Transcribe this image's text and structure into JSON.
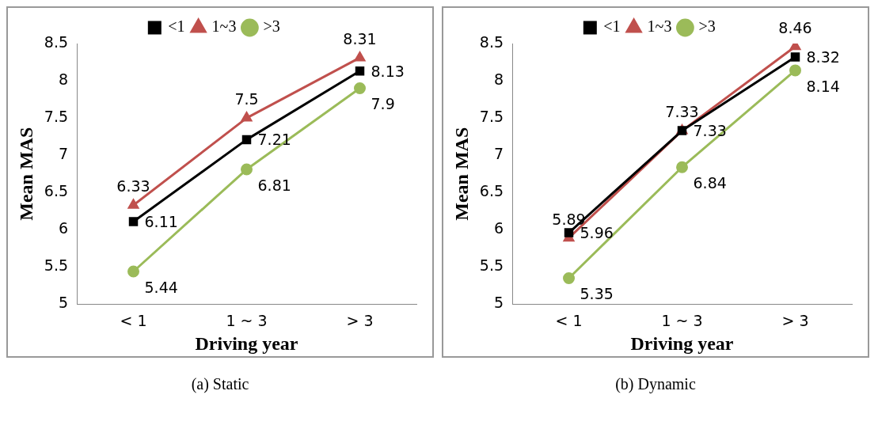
{
  "chart_data": [
    {
      "type": "line",
      "title": "(a) Static",
      "xlabel": "Driving year",
      "ylabel": "Mean MAS",
      "categories": [
        "< 1",
        "1 ~ 3",
        "> 3"
      ],
      "series": [
        {
          "name": "<1",
          "color": "#000000",
          "marker": "square",
          "values": [
            6.11,
            7.21,
            8.13
          ]
        },
        {
          "name": "1~3",
          "color": "#c0504d",
          "marker": "triangle",
          "values": [
            6.33,
            7.5,
            8.31
          ]
        },
        {
          "name": ">3",
          "color": "#9bbb59",
          "marker": "circle",
          "values": [
            5.44,
            6.81,
            7.9
          ]
        }
      ],
      "ylim": [
        5,
        8.5
      ],
      "yticks": [
        5,
        5.5,
        6,
        6.5,
        7,
        7.5,
        8,
        8.5
      ],
      "grid": false,
      "legend": "top",
      "data_labels": true
    },
    {
      "type": "line",
      "title": "(b) Dynamic",
      "xlabel": "Driving year",
      "ylabel": "Mean MAS",
      "categories": [
        "< 1",
        "1 ~ 3",
        "> 3"
      ],
      "series": [
        {
          "name": "<1",
          "color": "#000000",
          "marker": "square",
          "values": [
            5.96,
            7.33,
            8.32
          ]
        },
        {
          "name": "1~3",
          "color": "#c0504d",
          "marker": "triangle",
          "values": [
            5.89,
            7.33,
            8.46
          ]
        },
        {
          "name": ">3",
          "color": "#9bbb59",
          "marker": "circle",
          "values": [
            5.35,
            6.84,
            8.14
          ]
        }
      ],
      "ylim": [
        5,
        8.5
      ],
      "yticks": [
        5,
        5.5,
        6,
        6.5,
        7,
        7.5,
        8,
        8.5
      ],
      "grid": false,
      "legend": "top",
      "data_labels": true
    }
  ]
}
